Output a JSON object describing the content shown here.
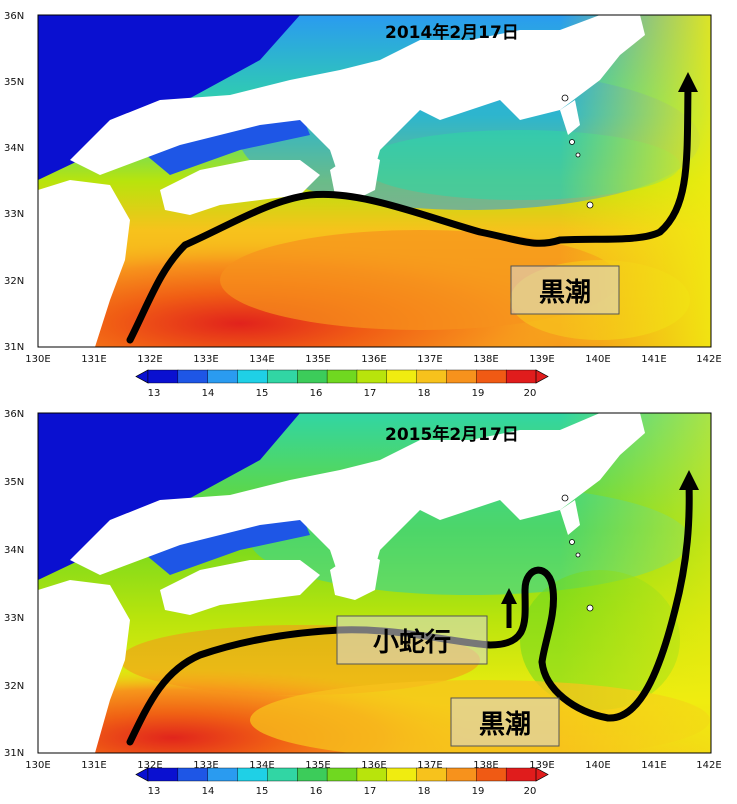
{
  "panels": [
    {
      "date": "2014年2月17日",
      "labels": [
        {
          "text": "黒潮"
        }
      ],
      "y_ticks": [
        "36N",
        "35N",
        "34N",
        "33N",
        "32N",
        "31N"
      ],
      "x_ticks": [
        "130E",
        "131E",
        "132E",
        "133E",
        "134E",
        "135E",
        "136E",
        "137E",
        "138E",
        "139E",
        "140E",
        "141E",
        "142E"
      ],
      "colorbar_ticks": [
        "13",
        "14",
        "15",
        "16",
        "17",
        "18",
        "19",
        "20"
      ]
    },
    {
      "date": "2015年2月17日",
      "labels": [
        {
          "text": "小蛇行"
        },
        {
          "text": "黒潮"
        }
      ],
      "y_ticks": [
        "36N",
        "35N",
        "34N",
        "33N",
        "32N",
        "31N"
      ],
      "x_ticks": [
        "130E",
        "131E",
        "132E",
        "133E",
        "134E",
        "135E",
        "136E",
        "137E",
        "138E",
        "139E",
        "140E",
        "141E",
        "142E"
      ],
      "colorbar_ticks": [
        "13",
        "14",
        "15",
        "16",
        "17",
        "18",
        "19",
        "20"
      ]
    }
  ],
  "colors": {
    "land": "#ffffff",
    "current_path": "#000000",
    "label_box": "#d9d9d9",
    "colorbar": [
      "#0a10d0",
      "#1e56e6",
      "#2a9bf0",
      "#1fd0e6",
      "#31d6a4",
      "#3ccc5a",
      "#70d820",
      "#b8e40c",
      "#f0ec10",
      "#f7c21c",
      "#f7921c",
      "#f05a14",
      "#e01c1c"
    ]
  }
}
